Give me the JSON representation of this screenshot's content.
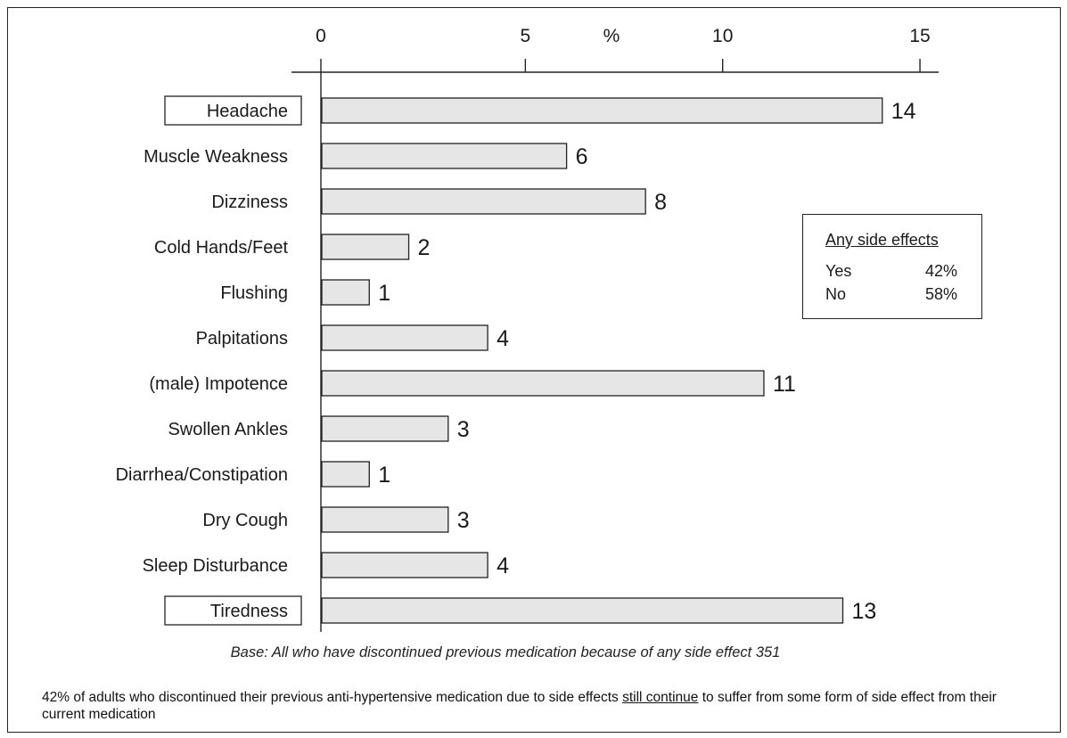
{
  "chart_data": {
    "type": "bar",
    "orientation": "horizontal",
    "axis_unit_label": "%",
    "xlim": [
      0,
      15
    ],
    "x_ticks": [
      0,
      5,
      10,
      15
    ],
    "categories": [
      "Headache",
      "Muscle Weakness",
      "Dizziness",
      "Cold Hands/Feet",
      "Flushing",
      "Palpitations",
      "(male) Impotence",
      "Swollen Ankles",
      "Diarrhea/Constipation",
      "Dry Cough",
      "Sleep Disturbance",
      "Tiredness"
    ],
    "values": [
      14,
      6,
      8,
      2,
      1,
      4,
      11,
      3,
      1,
      3,
      4,
      13
    ],
    "boxed_categories": [
      "Headache",
      "Tiredness"
    ],
    "legend_position": "right"
  },
  "legend": {
    "title": "Any side effects",
    "rows": [
      {
        "label": "Yes",
        "value": "42%"
      },
      {
        "label": "No",
        "value": "58%"
      }
    ]
  },
  "base_note": "Base: All who have discontinued previous medication because of any side effect   351",
  "footnote": {
    "before": "42% of adults who discontinued their previous anti-hypertensive medication due to side effects ",
    "underlined": "still continue",
    "after": " to suffer from some form of side effect from their current medication"
  }
}
